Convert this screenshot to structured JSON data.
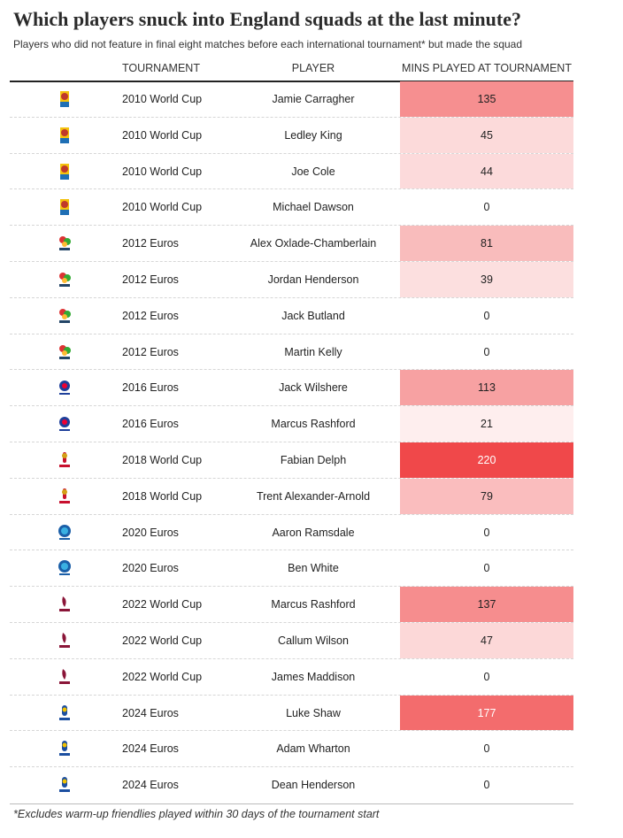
{
  "title": "Which players snuck into England squads at the last minute?",
  "subtitle": "Players who did not feature in final eight matches before each international tournament* but made the squad",
  "headers": {
    "tournament": "TOURNAMENT",
    "player": "PLAYER",
    "mins": "MINS PLAYED AT TOURNAMENT"
  },
  "footnote": "*Excludes warm-up friendlies played within 30 days of the tournament start",
  "scale_color": "#f0484a",
  "rows": [
    {
      "logo": "wc2010-logo",
      "tournament": "2010 World Cup",
      "player": "Jamie Carragher",
      "mins": 135
    },
    {
      "logo": "wc2010-logo",
      "tournament": "2010 World Cup",
      "player": "Ledley King",
      "mins": 45
    },
    {
      "logo": "wc2010-logo",
      "tournament": "2010 World Cup",
      "player": "Joe Cole",
      "mins": 44
    },
    {
      "logo": "wc2010-logo",
      "tournament": "2010 World Cup",
      "player": "Michael Dawson",
      "mins": 0
    },
    {
      "logo": "euro2012-logo",
      "tournament": "2012 Euros",
      "player": "Alex Oxlade-Chamberlain",
      "mins": 81
    },
    {
      "logo": "euro2012-logo",
      "tournament": "2012 Euros",
      "player": "Jordan Henderson",
      "mins": 39
    },
    {
      "logo": "euro2012-logo",
      "tournament": "2012 Euros",
      "player": "Jack Butland",
      "mins": 0
    },
    {
      "logo": "euro2012-logo",
      "tournament": "2012 Euros",
      "player": "Martin Kelly",
      "mins": 0
    },
    {
      "logo": "euro2016-logo",
      "tournament": "2016 Euros",
      "player": "Jack Wilshere",
      "mins": 113
    },
    {
      "logo": "euro2016-logo",
      "tournament": "2016 Euros",
      "player": "Marcus Rashford",
      "mins": 21
    },
    {
      "logo": "wc2018-logo",
      "tournament": "2018 World Cup",
      "player": "Fabian Delph",
      "mins": 220
    },
    {
      "logo": "wc2018-logo",
      "tournament": "2018 World Cup",
      "player": "Trent Alexander-Arnold",
      "mins": 79
    },
    {
      "logo": "euro2020-logo",
      "tournament": "2020 Euros",
      "player": "Aaron Ramsdale",
      "mins": 0
    },
    {
      "logo": "euro2020-logo",
      "tournament": "2020 Euros",
      "player": "Ben White",
      "mins": 0
    },
    {
      "logo": "wc2022-logo",
      "tournament": "2022 World Cup",
      "player": "Marcus Rashford",
      "mins": 137
    },
    {
      "logo": "wc2022-logo",
      "tournament": "2022 World Cup",
      "player": "Callum Wilson",
      "mins": 47
    },
    {
      "logo": "wc2022-logo",
      "tournament": "2022 World Cup",
      "player": "James Maddison",
      "mins": 0
    },
    {
      "logo": "euro2024-logo",
      "tournament": "2024 Euros",
      "player": "Luke Shaw",
      "mins": 177
    },
    {
      "logo": "euro2024-logo",
      "tournament": "2024 Euros",
      "player": "Adam Wharton",
      "mins": 0
    },
    {
      "logo": "euro2024-logo",
      "tournament": "2024 Euros",
      "player": "Dean Henderson",
      "mins": 0
    }
  ]
}
